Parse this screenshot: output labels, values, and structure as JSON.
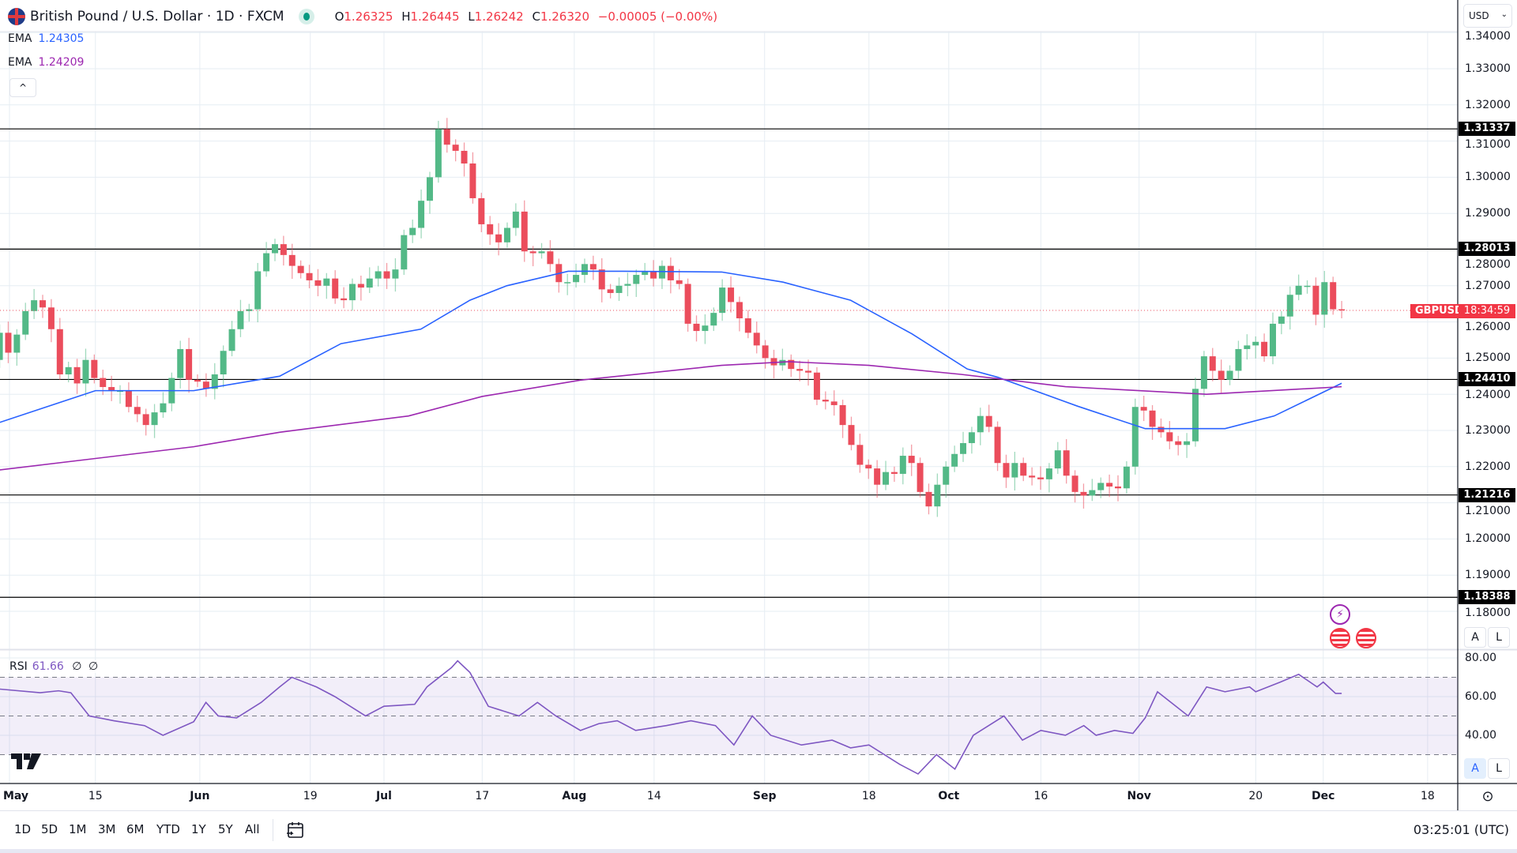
{
  "header": {
    "title": "British Pound / U.S. Dollar · 1D · FXCM",
    "ohlc": [
      {
        "k": "O",
        "v": "1.26325"
      },
      {
        "k": "H",
        "v": "1.26445"
      },
      {
        "k": "L",
        "v": "1.26242"
      },
      {
        "k": "C",
        "v": "1.26320"
      }
    ],
    "change": "−0.00005 (−0.00%)",
    "market_status": "open"
  },
  "indicators": {
    "ema1": {
      "label": "EMA",
      "value": "1.24305",
      "color": "#2962ff"
    },
    "ema2": {
      "label": "EMA",
      "value": "1.24209",
      "color": "#9c27b0"
    },
    "rsi": {
      "label": "RSI",
      "value": "61.66",
      "extra1": "∅",
      "extra2": "∅",
      "color": "#7e57c2"
    },
    "collapse_icon": "chevron-up-icon",
    "collapse_glyph": "^"
  },
  "price_axis": {
    "currency": "USD",
    "ticks": [
      "1.34000",
      "1.33000",
      "1.32000",
      "1.31000",
      "1.30000",
      "1.29000",
      "1.28000",
      "1.27000",
      "1.26000",
      "1.25000",
      "1.24000",
      "1.23000",
      "1.22000",
      "1.21000",
      "1.20000",
      "1.19000",
      "1.18000"
    ],
    "symbol_label": "GBPUSD",
    "countdown": "18:34:59",
    "auto_label": "A",
    "log_label": "L"
  },
  "rsi_axis": {
    "ticks": [
      "80.00",
      "60.00",
      "40.00"
    ],
    "auto_label": "A",
    "log_label": "L"
  },
  "time_axis": {
    "labels": [
      {
        "text": "May",
        "date": "05-01",
        "bold": true
      },
      {
        "text": "15",
        "date": "05-15"
      },
      {
        "text": "Jun",
        "date": "06-01",
        "bold": true
      },
      {
        "text": "19",
        "date": "06-19"
      },
      {
        "text": "Jul",
        "date": "07-01",
        "bold": true
      },
      {
        "text": "17",
        "date": "07-17"
      },
      {
        "text": "Aug",
        "date": "08-01",
        "bold": true
      },
      {
        "text": "14",
        "date": "08-14"
      },
      {
        "text": "Sep",
        "date": "09-01",
        "bold": true
      },
      {
        "text": "18",
        "date": "09-18"
      },
      {
        "text": "Oct",
        "date": "10-01",
        "bold": true
      },
      {
        "text": "16",
        "date": "10-16"
      },
      {
        "text": "Nov",
        "date": "11-01",
        "bold": true
      },
      {
        "text": "20",
        "date": "11-20"
      },
      {
        "text": "Dec",
        "date": "12-01",
        "bold": true
      },
      {
        "text": "18",
        "date": "12-18"
      }
    ]
  },
  "toolbar": {
    "ranges": [
      "1D",
      "5D",
      "1M",
      "3M",
      "6M",
      "YTD",
      "1Y",
      "5Y",
      "All"
    ],
    "date_range_icon": "calendar-goto-icon",
    "clock": "03:25:01 (UTC)"
  },
  "colors": {
    "up": "#53b987",
    "down": "#eb4d5c",
    "hline": "#000000",
    "grid": "#e6edf3"
  },
  "chart_data": {
    "type": "candlestick",
    "symbol": "GBPUSD",
    "interval": "1D",
    "ylim": [
      1.173,
      1.342
    ],
    "x_range": [
      "04-28",
      "12-04"
    ],
    "horizontal_lines": [
      1.31337,
      1.28013,
      1.2441,
      1.21216,
      1.18388
    ],
    "first_open": 1.249,
    "closes": [
      1.2495,
      1.257,
      1.2515,
      1.2565,
      1.263,
      1.266,
      1.264,
      1.258,
      1.2455,
      1.2475,
      1.243,
      1.2495,
      1.2445,
      1.242,
      1.241,
      1.241,
      1.2365,
      1.2345,
      1.2315,
      1.235,
      1.2375,
      1.2445,
      1.2525,
      1.244,
      1.2435,
      1.2415,
      1.2455,
      1.252,
      1.258,
      1.263,
      1.2635,
      1.274,
      1.279,
      1.2815,
      1.2785,
      1.2755,
      1.2735,
      1.2715,
      1.27,
      1.272,
      1.2665,
      1.266,
      1.2705,
      1.2695,
      1.272,
      1.274,
      1.272,
      1.2745,
      1.284,
      1.286,
      1.2935,
      1.3,
      1.3133,
      1.309,
      1.3073,
      1.3038,
      1.2942,
      1.287,
      1.2842,
      1.282,
      1.286,
      1.2905,
      1.2795,
      1.279,
      1.2795,
      1.276,
      1.271,
      1.271,
      1.273,
      1.276,
      1.2745,
      1.269,
      1.268,
      1.27,
      1.2705,
      1.273,
      1.274,
      1.272,
      1.2755,
      1.2715,
      1.2705,
      1.2595,
      1.2575,
      1.259,
      1.2625,
      1.2695,
      1.2655,
      1.261,
      1.257,
      1.2535,
      1.25,
      1.248,
      1.2495,
      1.247,
      1.2465,
      1.246,
      1.2385,
      1.238,
      1.237,
      1.2315,
      1.226,
      1.2205,
      1.2195,
      1.215,
      1.2185,
      1.218,
      1.223,
      1.221,
      1.213,
      1.209,
      1.215,
      1.22,
      1.2235,
      1.2265,
      1.2295,
      1.234,
      1.231,
      1.221,
      1.217,
      1.221,
      1.2175,
      1.217,
      1.2165,
      1.2195,
      1.2245,
      1.2175,
      1.213,
      1.212,
      1.2135,
      1.2155,
      1.2145,
      1.214,
      1.22,
      1.2365,
      1.2355,
      1.231,
      1.2295,
      1.227,
      1.226,
      1.227,
      1.2415,
      1.2505,
      1.2465,
      1.244,
      1.2465,
      1.2525,
      1.2535,
      1.2545,
      1.2505,
      1.2595,
      1.2615,
      1.2675,
      1.27,
      1.27,
      1.262,
      1.271,
      1.2635,
      1.2632
    ],
    "ema_fast": [
      [
        "04-29",
        1.232
      ],
      [
        "05-15",
        1.241
      ],
      [
        "05-31",
        1.241
      ],
      [
        "06-14",
        1.245
      ],
      [
        "06-24",
        1.254
      ],
      [
        "07-07",
        1.258
      ],
      [
        "07-15",
        1.266
      ],
      [
        "07-21",
        1.27
      ],
      [
        "07-31",
        1.274
      ],
      [
        "08-09",
        1.274
      ],
      [
        "08-25",
        1.2738
      ],
      [
        "09-04",
        1.271
      ],
      [
        "09-15",
        1.266
      ],
      [
        "09-25",
        1.2567
      ],
      [
        "10-04",
        1.247
      ],
      [
        "10-09",
        1.2447
      ],
      [
        "10-22",
        1.2367
      ],
      [
        "11-02",
        1.2305
      ],
      [
        "11-15",
        1.2305
      ],
      [
        "11-23",
        1.234
      ],
      [
        "12-04",
        1.24305
      ]
    ],
    "ema_slow": [
      [
        "04-29",
        1.219
      ],
      [
        "05-31",
        1.2255
      ],
      [
        "06-14",
        1.2295
      ],
      [
        "07-05",
        1.234
      ],
      [
        "07-17",
        1.2394
      ],
      [
        "08-02",
        1.2439
      ],
      [
        "08-25",
        1.248
      ],
      [
        "09-05",
        1.249
      ],
      [
        "09-18",
        1.248
      ],
      [
        "10-03",
        1.2455
      ],
      [
        "10-20",
        1.2421
      ],
      [
        "11-12",
        1.24
      ],
      [
        "12-04",
        1.24209
      ]
    ],
    "rsi": {
      "levels": [
        70,
        50,
        30
      ],
      "ylim": [
        15,
        85
      ],
      "points": [
        [
          "04-29",
          64
        ],
        [
          "05-06",
          62
        ],
        [
          "05-09",
          63
        ],
        [
          "05-11",
          62
        ],
        [
          "05-14",
          50
        ],
        [
          "05-18",
          47.5
        ],
        [
          "05-23",
          45
        ],
        [
          "05-26",
          40
        ],
        [
          "05-31",
          47
        ],
        [
          "06-02",
          57
        ],
        [
          "06-04",
          50
        ],
        [
          "06-07",
          49
        ],
        [
          "06-11",
          57
        ],
        [
          "06-14",
          65
        ],
        [
          "06-16",
          70
        ],
        [
          "06-20",
          65
        ],
        [
          "06-23",
          60
        ],
        [
          "06-28",
          50
        ],
        [
          "07-01",
          55
        ],
        [
          "07-06",
          56
        ],
        [
          "07-08",
          65
        ],
        [
          "07-12",
          75
        ],
        [
          "07-13",
          78.5
        ],
        [
          "07-15",
          72.5
        ],
        [
          "07-18",
          55
        ],
        [
          "07-23",
          50
        ],
        [
          "07-26",
          57
        ],
        [
          "07-29",
          50
        ],
        [
          "08-02",
          42.5
        ],
        [
          "08-05",
          46
        ],
        [
          "08-08",
          47.5
        ],
        [
          "08-11",
          42.5
        ],
        [
          "08-16",
          45
        ],
        [
          "08-20",
          47.5
        ],
        [
          "08-24",
          45
        ],
        [
          "08-27",
          35
        ],
        [
          "08-30",
          50
        ],
        [
          "09-02",
          40
        ],
        [
          "09-07",
          35
        ],
        [
          "09-12",
          37.5
        ],
        [
          "09-15",
          33.5
        ],
        [
          "09-18",
          35
        ],
        [
          "09-23",
          25
        ],
        [
          "09-26",
          20
        ],
        [
          "09-29",
          30
        ],
        [
          "10-02",
          22.5
        ],
        [
          "10-05",
          40
        ],
        [
          "10-10",
          50
        ],
        [
          "10-13",
          37.5
        ],
        [
          "10-16",
          42.5
        ],
        [
          "10-20",
          40
        ],
        [
          "10-23",
          45
        ],
        [
          "10-25",
          40
        ],
        [
          "10-28",
          42.5
        ],
        [
          "10-31",
          41
        ],
        [
          "11-02",
          49
        ],
        [
          "11-04",
          62.5
        ],
        [
          "11-06",
          57.5
        ],
        [
          "11-09",
          50
        ],
        [
          "11-12",
          65
        ],
        [
          "11-15",
          62.5
        ],
        [
          "11-19",
          65
        ],
        [
          "11-20",
          62.5
        ],
        [
          "11-24",
          67.5
        ],
        [
          "11-27",
          71.5
        ],
        [
          "11-30",
          65
        ],
        [
          "12-01",
          67.5
        ],
        [
          "12-03",
          61.66
        ],
        [
          "12-04",
          61.66
        ]
      ]
    }
  },
  "events": [
    {
      "icon": "lightning-event-icon",
      "color": "#9c27b0"
    },
    {
      "icon": "us-flag-event-icon",
      "color": "#f23645"
    },
    {
      "icon": "us-flag-event-icon",
      "color": "#f23645"
    }
  ]
}
